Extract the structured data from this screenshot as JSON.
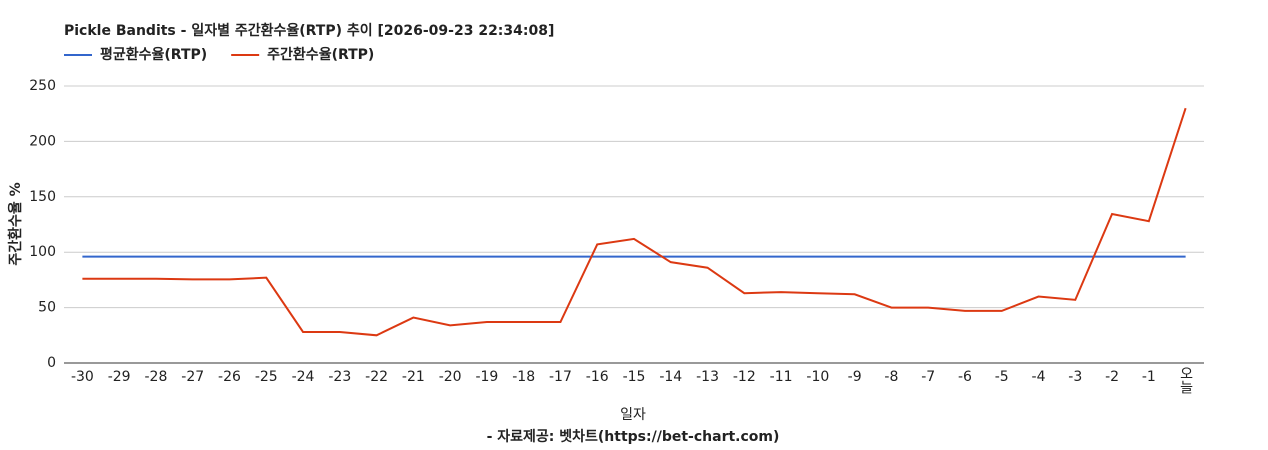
{
  "chart_data": {
    "type": "line",
    "title": "Pickle Bandits - 일자별 주간환수율(RTP) 추이 [2026-09-23 22:34:08]",
    "x_label": "일자",
    "y_label": "주간환수율 %",
    "source": "- 자료제공: 벳차트(https://bet-chart.com)",
    "categories": [
      "-30",
      "-29",
      "-28",
      "-27",
      "-26",
      "-25",
      "-24",
      "-23",
      "-22",
      "-21",
      "-20",
      "-19",
      "-18",
      "-17",
      "-16",
      "-15",
      "-14",
      "-13",
      "-12",
      "-11",
      "-10",
      "-9",
      "-8",
      "-7",
      "-6",
      "-5",
      "-4",
      "-3",
      "-2",
      "-1",
      "오늘"
    ],
    "series": [
      {
        "name": "평균환수율(RTP)",
        "color": "#3366cc",
        "values": [
          96,
          96,
          96,
          96,
          96,
          96,
          96,
          96,
          96,
          96,
          96,
          96,
          96,
          96,
          96,
          96,
          96,
          96,
          96,
          96,
          96,
          96,
          96,
          96,
          96,
          96,
          96,
          96,
          96,
          96,
          96
        ]
      },
      {
        "name": "주간환수율(RTP)",
        "color": "#dc3912",
        "values": [
          76,
          76,
          76,
          75.5,
          75.5,
          77,
          28,
          28,
          25,
          41,
          34,
          37,
          37,
          37,
          107,
          112,
          91,
          86,
          63,
          64,
          63,
          62,
          50,
          50,
          47,
          47,
          60,
          57,
          134.5,
          128,
          230
        ]
      }
    ],
    "ylim": [
      0,
      250
    ],
    "yticks": [
      0,
      50,
      100,
      150,
      200,
      250
    ],
    "grid": true
  }
}
